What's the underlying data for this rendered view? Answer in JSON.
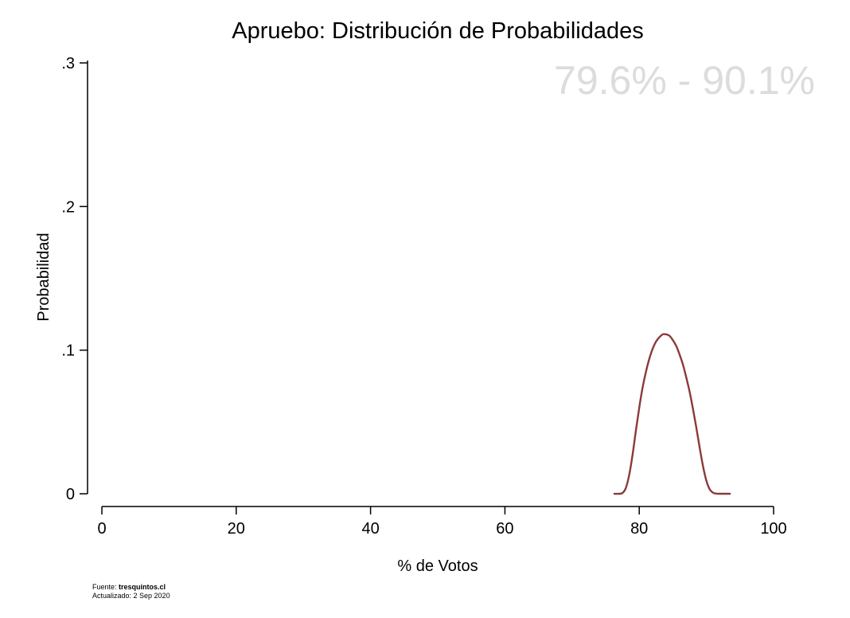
{
  "chart_data": {
    "type": "line",
    "title": "Apruebo: Distribución de Probabilidades",
    "xlabel": "% de Votos",
    "ylabel": "Probabilidad",
    "xlim": [
      0,
      100
    ],
    "ylim": [
      0,
      0.3
    ],
    "xticks": [
      {
        "value": 0,
        "label": "0"
      },
      {
        "value": 20,
        "label": "20"
      },
      {
        "value": 40,
        "label": "40"
      },
      {
        "value": 60,
        "label": "60"
      },
      {
        "value": 80,
        "label": "80"
      },
      {
        "value": 100,
        "label": "100"
      }
    ],
    "yticks": [
      {
        "value": 0,
        "label": "0"
      },
      {
        "value": 0.1,
        "label": ".1"
      },
      {
        "value": 0.2,
        "label": ".2"
      },
      {
        "value": 0.3,
        "label": ".3"
      }
    ],
    "annotation": "79.6% - 90.1%",
    "grid": false,
    "series": [
      {
        "color": "#8b3a3a",
        "x": [
          76.3,
          77.0,
          77.5,
          78.0,
          78.5,
          79.0,
          79.5,
          80.0,
          80.5,
          81.0,
          81.5,
          82.0,
          82.5,
          83.0,
          83.5,
          84.0,
          84.5,
          85.0,
          85.5,
          86.0,
          86.5,
          87.0,
          87.5,
          88.0,
          88.5,
          89.0,
          89.5,
          90.0,
          90.5,
          91.0,
          91.5,
          92.0,
          92.5,
          93.0,
          93.5
        ],
        "y": [
          0.0,
          0.0,
          0.0005,
          0.004,
          0.013,
          0.027,
          0.044,
          0.06,
          0.074,
          0.085,
          0.094,
          0.101,
          0.106,
          0.109,
          0.111,
          0.111,
          0.11,
          0.107,
          0.103,
          0.097,
          0.09,
          0.081,
          0.071,
          0.059,
          0.046,
          0.032,
          0.019,
          0.009,
          0.003,
          0.0007,
          0.0001,
          0.0,
          0.0,
          0.0,
          0.0
        ]
      }
    ]
  },
  "footer": {
    "source_prefix": "Fuente: ",
    "source_site": "tresquintos.cl",
    "updated": "Actualizado: 2 Sep 2020"
  }
}
